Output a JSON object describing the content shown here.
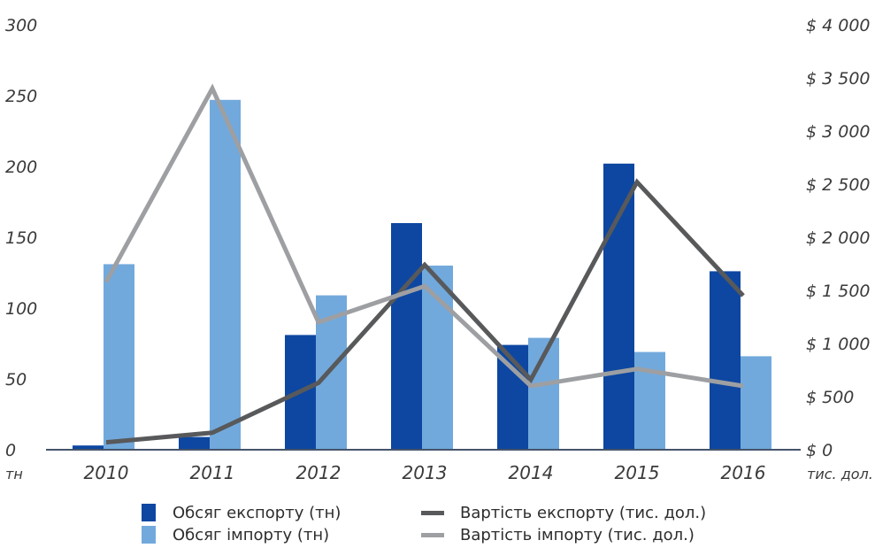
{
  "chart_data": {
    "type": "bar",
    "categories": [
      "2010",
      "2011",
      "2012",
      "2013",
      "2014",
      "2015",
      "2016"
    ],
    "y_left": {
      "ticks": [
        "300",
        "250",
        "200",
        "150",
        "100",
        "50",
        "0"
      ],
      "unit": "тн",
      "range": [
        0,
        300
      ]
    },
    "y_right": {
      "ticks": [
        "$ 4 000",
        "$ 3 500",
        "$ 3 000",
        "$ 2 500",
        "$ 2 000",
        "$ 1 500",
        "$ 1 000",
        "$ 500",
        "$ 0"
      ],
      "unit": "тис. дол.",
      "range": [
        0,
        4000
      ]
    },
    "series": [
      {
        "name": "Обсяг експорту (тн)",
        "kind": "bar",
        "axis": "left",
        "color": "#0d47a1",
        "values": [
          3,
          9,
          81,
          160,
          74,
          202,
          126
        ]
      },
      {
        "name": "Обсяг імпорту (тн)",
        "kind": "bar",
        "axis": "left",
        "color": "#72a9dc",
        "values": [
          131,
          247,
          109,
          130,
          79,
          69,
          66
        ]
      },
      {
        "name": "Вартість експорту (тис. дол.)",
        "kind": "line",
        "axis": "right",
        "color": "#58595b",
        "values": [
          70,
          160,
          630,
          1740,
          660,
          2520,
          1450
        ]
      },
      {
        "name": "Вартість імпорту (тис. дол.)",
        "kind": "line",
        "axis": "right",
        "color": "#9d9fa2",
        "values": [
          1580,
          3400,
          1200,
          1540,
          600,
          760,
          600
        ]
      }
    ],
    "legend_position": "bottom",
    "grid": false
  }
}
